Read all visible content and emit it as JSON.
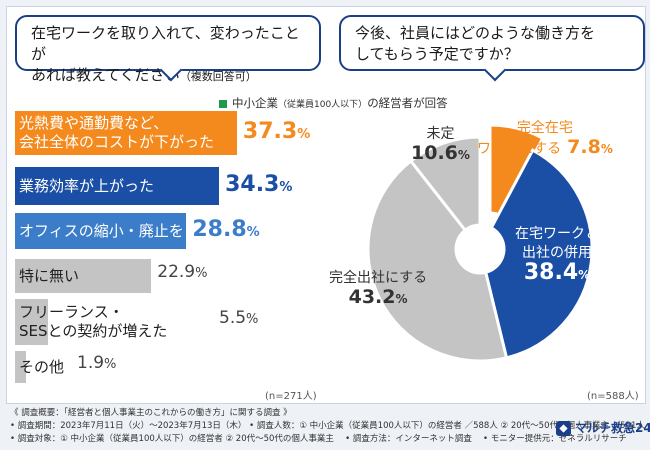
{
  "questions": {
    "left_line1": "在宅ワークを取り入れて、変わったことが",
    "left_line2": "あれば教えてください",
    "left_note": "（複数回答可）",
    "right_line1": "今後、社員にはどのような働き方を",
    "right_line2": "してもらう予定ですか？"
  },
  "legend": {
    "prefix": "中小企業",
    "paren": "（従業員100人以下）",
    "suffix": "の経営者が回答"
  },
  "colors": {
    "orange": "#f48a1e",
    "navy": "#1b4fa6",
    "blue": "#3b7dc9",
    "gray": "#c4c4c4",
    "dark": "#1b3f86"
  },
  "chart_data": [
    {
      "type": "bar",
      "orientation": "horizontal",
      "categories": [
        "光熱費や通勤費など、会社全体のコストが下がった",
        "業務効率が上がった",
        "オフィスの縮小・廃止をした",
        "特に無い",
        "フリーランス・SESとの契約が増えた",
        "その他"
      ],
      "label_lines": [
        [
          "光熱費や通勤費など、",
          "会社全体のコストが下がった"
        ],
        [
          "業務効率が上がった"
        ],
        [
          "オフィスの縮小・廃止をした"
        ],
        [
          "特に無い"
        ],
        [
          "フリーランス・",
          "SESとの契約が増えた"
        ],
        [
          "その他"
        ]
      ],
      "values": [
        37.3,
        34.3,
        28.8,
        22.9,
        5.5,
        1.9
      ],
      "value_labels": [
        "37.3",
        "34.3",
        "28.8",
        "22.9",
        "5.5",
        "1.9"
      ],
      "unit": "%",
      "n": "(n=271人)"
    },
    {
      "type": "pie",
      "slices": [
        {
          "label": "完全在宅ワークにする",
          "lines": [
            "完全在宅",
            "ワークにする"
          ],
          "value": 7.8,
          "text": "7.8"
        },
        {
          "label": "在宅ワークと出社の併用",
          "lines": [
            "在宅ワークと",
            "出社の併用"
          ],
          "value": 38.4,
          "text": "38.4"
        },
        {
          "label": "完全出社にする",
          "lines": [
            "完全出社にする"
          ],
          "value": 43.2,
          "text": "43.2"
        },
        {
          "label": "未定",
          "lines": [
            "未定"
          ],
          "value": 10.6,
          "text": "10.6"
        }
      ],
      "unit": "%",
      "n": "(n=588人)"
    }
  ],
  "footer": {
    "line1": "《 調査概要：「経営者と個人事業主のこれからの働き方」に関する調査 》",
    "line2": "• 調査期間：2023年7月11日（火）～2023年7月13日（木） • 調査人数：① 中小企業（従業員100人以下）の経営者 ／588人 ② 20代～50代の個人事業主 ／501人",
    "line3": "• 調査対象：① 中小企業（従業員100人以下）の経営者 ② 20代～50代の個人事業主 　• 調査方法：インターネット調査 　• モニター提供元：ゼネラルリサーチ",
    "brand": "マルチ救急24"
  }
}
